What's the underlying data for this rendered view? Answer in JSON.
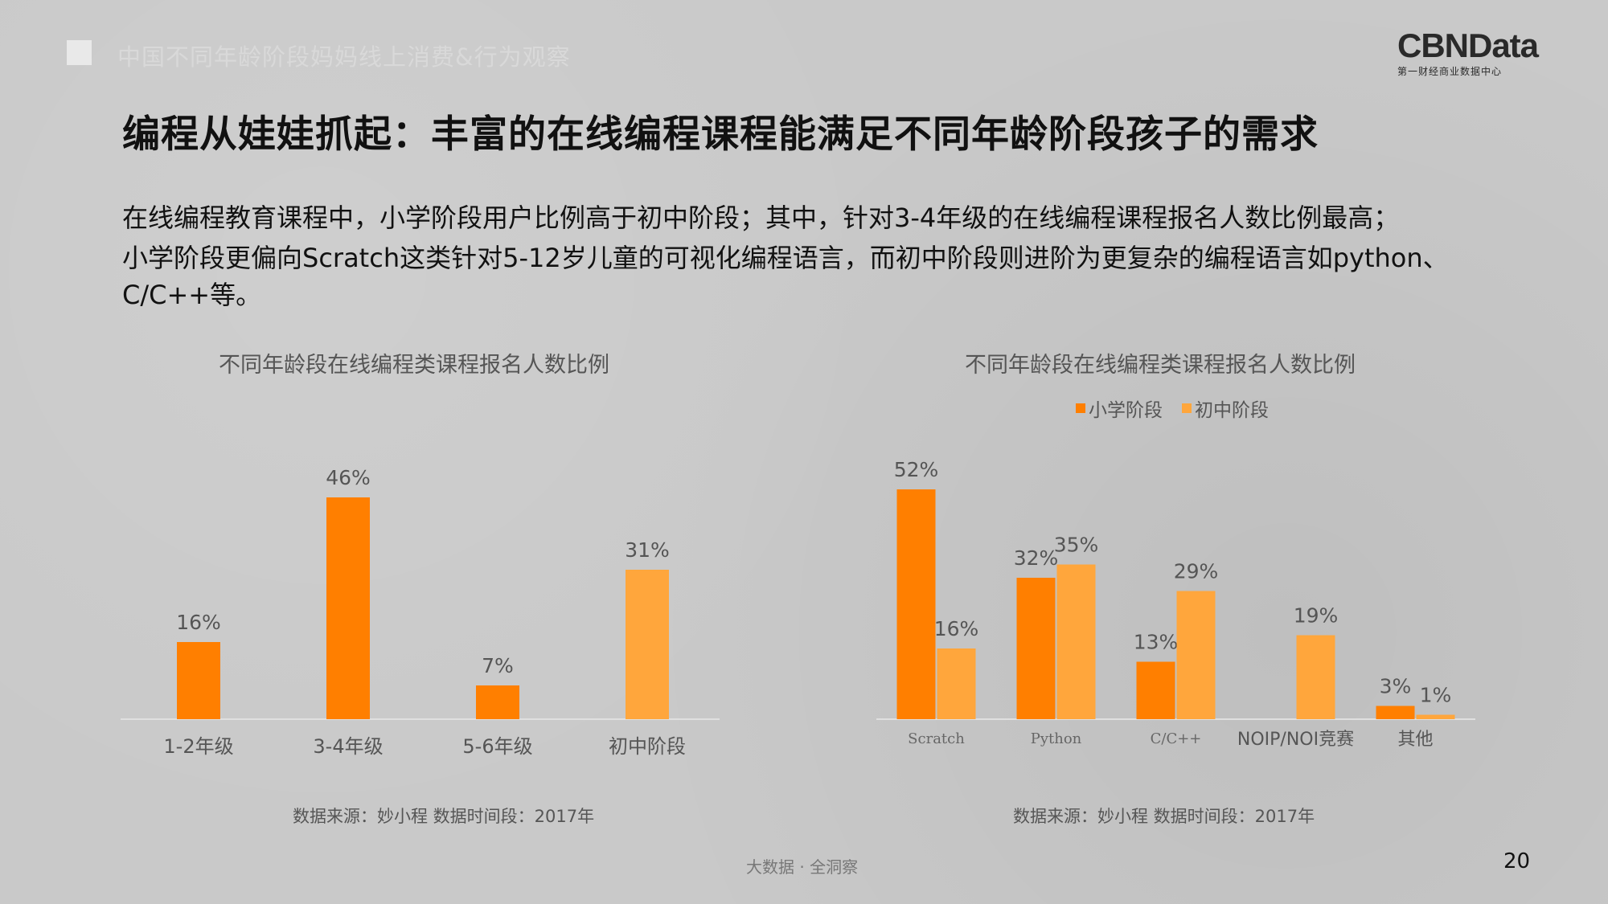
{
  "header": {
    "caption": "中国不同年龄阶段妈妈线上消费&行为观察",
    "logo_main": "CBNData",
    "logo_sub": "第一财经商业数据中心"
  },
  "title": "编程从娃娃抓起：丰富的在线编程课程能满足不同年龄阶段孩子的需求",
  "description": {
    "line1": "在线编程教育课程中，小学阶段用户比例高于初中阶段；其中，针对3-4年级的在线编程课程报名人数比例最高；",
    "line2": "小学阶段更偏向Scratch这类针对5-12岁儿童的可视化编程语言，而初中阶段则进阶为更复杂的编程语言如python、C/C++等。"
  },
  "colors": {
    "primary": "#ff7f00",
    "secondary": "#ffa63c",
    "axis": "#e0e0e0"
  },
  "chart_data": [
    {
      "type": "bar",
      "title": "不同年龄段在线编程类课程报名人数比例",
      "categories": [
        "1-2年级",
        "3-4年级",
        "5-6年级",
        "初中阶段"
      ],
      "values": [
        16,
        46,
        7,
        31
      ],
      "value_labels": [
        "16%",
        "46%",
        "7%",
        "31%"
      ],
      "bar_colors": [
        "#ff7f00",
        "#ff7f00",
        "#ff7f00",
        "#ffa63c"
      ],
      "ylim": [
        0,
        50
      ],
      "grid": false,
      "source": "数据来源：妙小程  数据时间段：2017年"
    },
    {
      "type": "bar",
      "title": "不同年龄段在线编程类课程报名人数比例",
      "categories": [
        "Scratch",
        "Python",
        "C/C++",
        "NOIP/NOI竞赛",
        "其他"
      ],
      "series": [
        {
          "name": "小学阶段",
          "values": [
            52,
            32,
            13,
            null,
            3
          ],
          "labels": [
            "52%",
            "32%",
            "13%",
            "",
            "3%"
          ],
          "color": "#ff7f00"
        },
        {
          "name": "初中阶段",
          "values": [
            16,
            35,
            29,
            19,
            1
          ],
          "labels": [
            "16%",
            "35%",
            "29%",
            "19%",
            "1%"
          ],
          "color": "#ffa63c"
        }
      ],
      "ylim": [
        0,
        60
      ],
      "legend": "top",
      "grid": false,
      "source": "数据来源：妙小程  数据时间段：2017年"
    }
  ],
  "footer": {
    "center": "大数据 · 全洞察",
    "page": "20"
  }
}
